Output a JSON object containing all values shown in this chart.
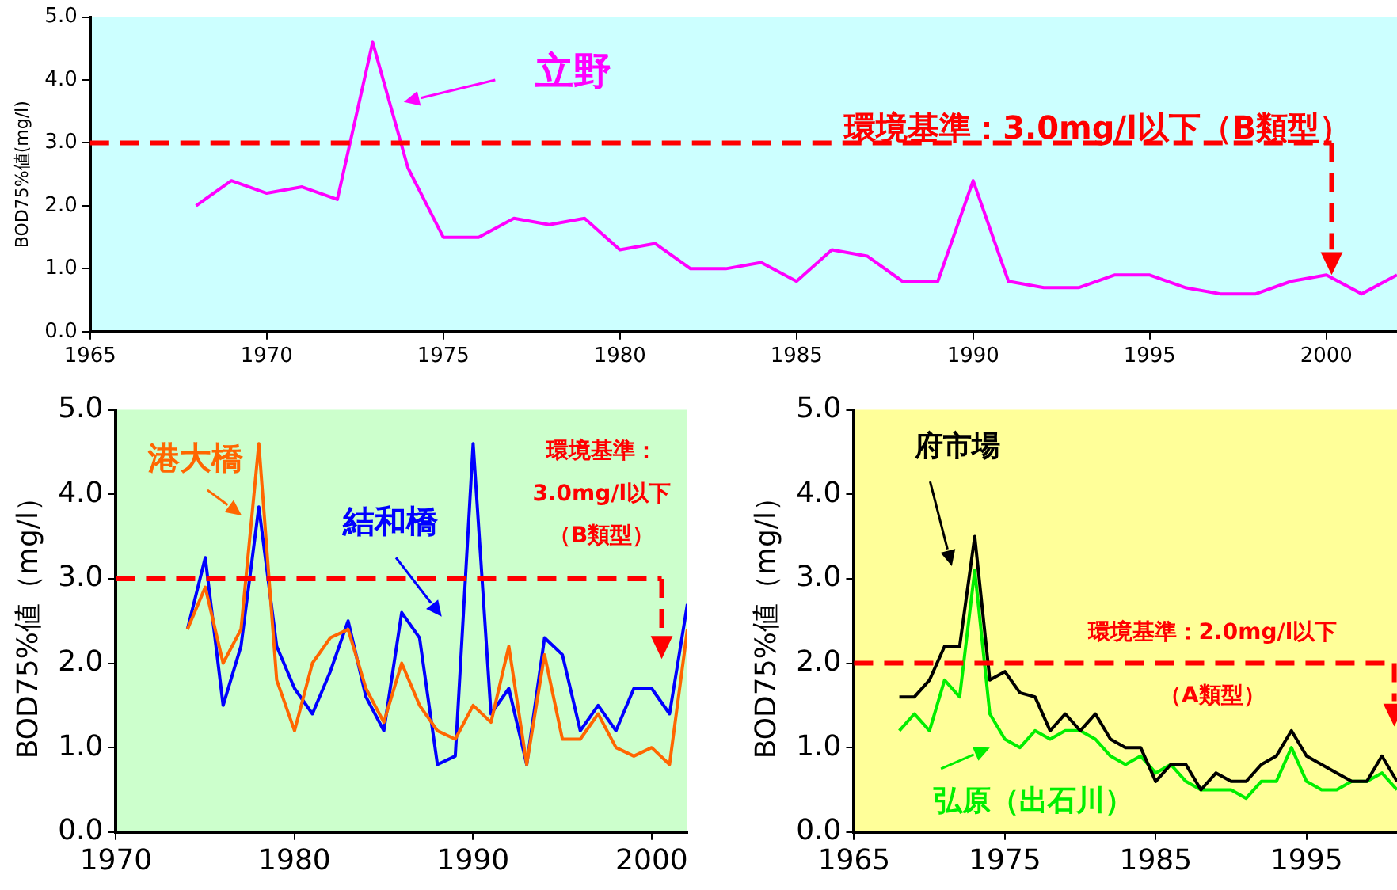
{
  "chart_data": [
    {
      "type": "line",
      "ylabel": "BOD75%値(mg/l)",
      "xlim": [
        1965,
        2002
      ],
      "xticks": [
        1965,
        1970,
        1975,
        1980,
        1985,
        1990,
        1995,
        2000
      ],
      "ylim": [
        0,
        5
      ],
      "yticks": [
        {
          "value": 0,
          "label": "0.0"
        },
        {
          "value": 1,
          "label": "1.0"
        },
        {
          "value": 2,
          "label": "2.0"
        },
        {
          "value": 3,
          "label": "3.0"
        },
        {
          "value": 4,
          "label": "4.0"
        },
        {
          "value": 5,
          "label": "5.0"
        }
      ],
      "grid": false,
      "marker": "none",
      "line_style": "solid",
      "x": [
        1968,
        1969,
        1970,
        1971,
        1972,
        1973,
        1974,
        1975,
        1976,
        1977,
        1978,
        1979,
        1980,
        1981,
        1982,
        1983,
        1984,
        1985,
        1986,
        1987,
        1988,
        1989,
        1990,
        1991,
        1992,
        1993,
        1994,
        1995,
        1996,
        1997,
        1998,
        1999,
        2000,
        2001,
        2002
      ],
      "series": [
        {
          "name": "立野",
          "color": "#ff00ff",
          "values": [
            2.0,
            2.4,
            2.2,
            2.3,
            2.1,
            4.6,
            2.6,
            1.5,
            1.5,
            1.8,
            1.7,
            1.8,
            1.3,
            1.4,
            1.0,
            1.0,
            1.1,
            0.8,
            1.3,
            1.2,
            0.8,
            0.8,
            2.4,
            0.8,
            0.7,
            0.7,
            0.9,
            0.9,
            0.7,
            0.6,
            0.6,
            0.8,
            0.9,
            0.6,
            0.9
          ]
        }
      ],
      "ref_lines": [
        {
          "axis": "y",
          "value": 3.0,
          "label": "環境基準：3.0mg/l以下（B類型）",
          "color": "#ff0000",
          "line_style": "dashed"
        }
      ]
    },
    {
      "type": "line",
      "ylabel": "BOD75%値（mg/l）",
      "xlim": [
        1970,
        2002
      ],
      "xticks": [
        1970,
        1980,
        1990,
        2000
      ],
      "ylim": [
        0,
        5
      ],
      "yticks": [
        {
          "value": 0,
          "label": "0.0"
        },
        {
          "value": 1,
          "label": "1.0"
        },
        {
          "value": 2,
          "label": "2.0"
        },
        {
          "value": 3,
          "label": "3.0"
        },
        {
          "value": 4,
          "label": "4.0"
        },
        {
          "value": 5,
          "label": "5.0"
        }
      ],
      "grid": false,
      "marker": "none",
      "line_style": "solid",
      "x": [
        1974,
        1975,
        1976,
        1977,
        1978,
        1979,
        1980,
        1981,
        1982,
        1983,
        1984,
        1985,
        1986,
        1987,
        1988,
        1989,
        1990,
        1991,
        1992,
        1993,
        1994,
        1995,
        1996,
        1997,
        1998,
        1999,
        2000,
        2001,
        2002
      ],
      "series": [
        {
          "name": "港大橋",
          "color": "#ff6600",
          "values": [
            2.4,
            2.9,
            2.0,
            2.4,
            4.6,
            1.8,
            1.2,
            2.0,
            2.3,
            2.4,
            1.7,
            1.3,
            2.0,
            1.5,
            1.2,
            1.1,
            1.5,
            1.3,
            2.2,
            0.8,
            2.1,
            1.1,
            1.1,
            1.4,
            1.0,
            0.9,
            1.0,
            0.8,
            2.4
          ]
        },
        {
          "name": "結和橋",
          "color": "#0000ff",
          "values": [
            2.4,
            3.25,
            1.5,
            2.2,
            3.85,
            2.2,
            1.7,
            1.4,
            1.9,
            2.5,
            1.6,
            1.2,
            2.6,
            2.3,
            0.8,
            0.9,
            4.6,
            1.4,
            1.7,
            0.8,
            2.3,
            2.1,
            1.2,
            1.5,
            1.2,
            1.7,
            1.7,
            1.4,
            2.7
          ]
        }
      ],
      "ref_lines": [
        {
          "axis": "y",
          "value": 3.0,
          "label": "環境基準：3.0mg/l以下（B類型）",
          "color": "#ff0000",
          "line_style": "dashed"
        }
      ]
    },
    {
      "type": "line",
      "ylabel": "BOD75%値（mg/l）",
      "xlim": [
        1965,
        2001
      ],
      "xticks": [
        1965,
        1975,
        1985,
        1995
      ],
      "ylim": [
        0,
        5
      ],
      "yticks": [
        {
          "value": 0,
          "label": "0.0"
        },
        {
          "value": 1,
          "label": "1.0"
        },
        {
          "value": 2,
          "label": "2.0"
        },
        {
          "value": 3,
          "label": "3.0"
        },
        {
          "value": 4,
          "label": "4.0"
        },
        {
          "value": 5,
          "label": "5.0"
        }
      ],
      "grid": false,
      "marker": "none",
      "line_style": "solid",
      "x": [
        1968,
        1969,
        1970,
        1971,
        1972,
        1973,
        1974,
        1975,
        1976,
        1977,
        1978,
        1979,
        1980,
        1981,
        1982,
        1983,
        1984,
        1985,
        1986,
        1987,
        1988,
        1989,
        1990,
        1991,
        1992,
        1993,
        1994,
        1995,
        1996,
        1997,
        1998,
        1999,
        2000,
        2001
      ],
      "series": [
        {
          "name": "府市場",
          "color": "#000000",
          "values": [
            1.6,
            1.6,
            1.8,
            2.2,
            2.2,
            3.5,
            1.8,
            1.9,
            1.65,
            1.6,
            1.2,
            1.4,
            1.2,
            1.4,
            1.1,
            1.0,
            1.0,
            0.6,
            0.8,
            0.8,
            0.5,
            0.7,
            0.6,
            0.6,
            0.8,
            0.9,
            1.2,
            0.9,
            0.8,
            0.7,
            0.6,
            0.6,
            0.9,
            0.6
          ]
        },
        {
          "name": "弘原（出石川）",
          "color": "#00ee00",
          "values": [
            1.2,
            1.4,
            1.2,
            1.8,
            1.6,
            3.1,
            1.4,
            1.1,
            1.0,
            1.2,
            1.1,
            1.2,
            1.2,
            1.1,
            0.9,
            0.8,
            0.9,
            0.7,
            0.8,
            0.6,
            0.5,
            0.5,
            0.5,
            0.4,
            0.6,
            0.6,
            1.0,
            0.6,
            0.5,
            0.5,
            0.6,
            0.6,
            0.7,
            0.5
          ]
        }
      ],
      "ref_lines": [
        {
          "axis": "y",
          "value": 2.0,
          "label": "環境基準：2.0mg/l以下（A類型）",
          "color": "#ff0000",
          "line_style": "dashed"
        }
      ]
    }
  ]
}
